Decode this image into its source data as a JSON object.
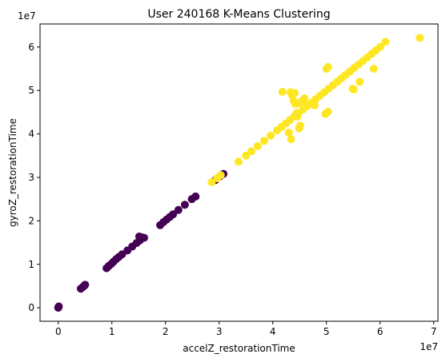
{
  "chart_data": {
    "type": "scatter",
    "title": "User 240168 K-Means Clustering",
    "xlabel": "accelZ_restorationTime",
    "ylabel": "gyroZ_restorationTime",
    "x_scale_label": "1e7",
    "y_scale_label": "1e7",
    "xlim": [
      -3.4,
      70.8
    ],
    "ylim": [
      -3.1,
      65.3
    ],
    "x_ticks": [
      0,
      10,
      20,
      30,
      40,
      50,
      60,
      70
    ],
    "x_tick_labels": [
      "0",
      "1",
      "2",
      "3",
      "4",
      "5",
      "6",
      "7"
    ],
    "y_ticks": [
      0,
      10,
      20,
      30,
      40,
      50,
      60
    ],
    "y_tick_labels": [
      "0",
      "1",
      "2",
      "3",
      "4",
      "5",
      "6"
    ],
    "grid": false,
    "legend": "none",
    "series": [
      {
        "color": "#440154",
        "x": [
          0,
          0,
          0.1,
          4.2,
          4.6,
          4.9,
          5.0,
          9.0,
          9.4,
          9.9,
          10.3,
          10.8,
          11.3,
          11.9,
          12.9,
          13.8,
          14.6,
          15.2,
          15.6,
          15.1,
          16.0,
          19.0,
          19.6,
          20.2,
          20.8,
          21.4,
          22.4,
          23.6,
          24.9,
          25.6,
          29.3,
          30.2,
          30.8
        ],
        "y": [
          0,
          0.1,
          0.3,
          4.4,
          4.8,
          5.1,
          5.3,
          9.1,
          9.6,
          10.1,
          10.6,
          11.2,
          11.7,
          12.3,
          13.2,
          14.1,
          14.9,
          15.5,
          16.2,
          16.4,
          16.1,
          19.0,
          19.7,
          20.3,
          20.9,
          21.5,
          22.5,
          23.7,
          25.0,
          25.6,
          29.4,
          30.3,
          30.8
        ]
      },
      {
        "color": "#fde725",
        "x": [
          28.6,
          29.6,
          30.3,
          33.6,
          35.0,
          36.0,
          37.2,
          38.4,
          39.6,
          40.8,
          41.6,
          42.4,
          43.2,
          44.0,
          44.8,
          45.6,
          46.4,
          47.2,
          48.0,
          48.8,
          49.6,
          50.4,
          51.2,
          52.0,
          52.8,
          53.6,
          54.4,
          55.2,
          56.0,
          56.8,
          57.6,
          58.4,
          59.2,
          60.0,
          61.0,
          67.4,
          41.8,
          43.3,
          43.6,
          44.1,
          43.9,
          44.2,
          44.8,
          45.4,
          45.9,
          46.3,
          44.4,
          44.6,
          45.1,
          43.0,
          43.4,
          44.9,
          47.8,
          49.8,
          50.3,
          55.1,
          54.9,
          56.2,
          58.8,
          50.0,
          50.3
        ],
        "y": [
          28.9,
          29.8,
          30.5,
          33.6,
          35.0,
          36.0,
          37.2,
          38.4,
          39.6,
          40.8,
          41.6,
          42.4,
          43.2,
          44.0,
          44.8,
          45.6,
          46.4,
          47.2,
          48.0,
          48.8,
          49.6,
          50.4,
          51.2,
          52.0,
          52.8,
          53.6,
          54.4,
          55.2,
          56.0,
          56.8,
          57.6,
          58.4,
          59.2,
          60.0,
          61.2,
          62.1,
          49.7,
          49.6,
          48.9,
          49.4,
          47.6,
          46.9,
          47.1,
          47.5,
          48.2,
          46.6,
          44.8,
          44.0,
          41.9,
          40.3,
          38.8,
          41.3,
          46.6,
          44.6,
          45.1,
          50.2,
          50.4,
          52.0,
          55.0,
          55.0,
          55.4
        ]
      }
    ]
  }
}
